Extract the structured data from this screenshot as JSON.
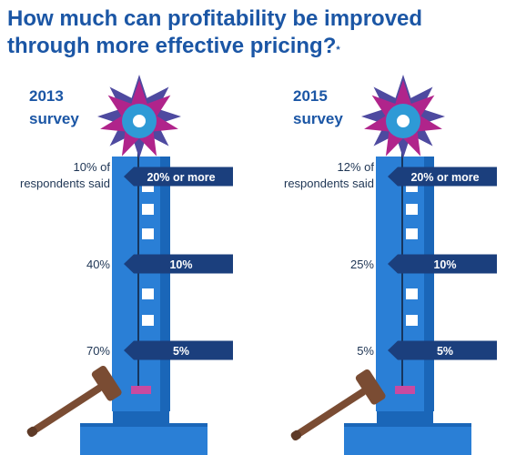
{
  "title": "How much can profitability be improved through more effective pricing?",
  "title_mark": "*",
  "chart_data": {
    "type": "table",
    "title": "How much can profitability be improved through more effective pricing?",
    "levels": [
      "20% or more",
      "10%",
      "5%"
    ],
    "panels": [
      {
        "survey_label": "2013 survey",
        "year": "2013",
        "unit": "survey",
        "values": [
          "10% of respondents said",
          "40%",
          "70%"
        ],
        "value_lines": [
          [
            "10% of",
            "respondents said"
          ],
          [
            "40%"
          ],
          [
            "70%"
          ]
        ],
        "percent_respondents": [
          10,
          40,
          70
        ]
      },
      {
        "survey_label": "2015 survey",
        "year": "2015",
        "unit": "survey",
        "values": [
          "12% of respondents said",
          "25%",
          "5%"
        ],
        "value_lines": [
          [
            "12% of",
            "respondents said"
          ],
          [
            "25%"
          ],
          [
            "5%"
          ]
        ],
        "percent_respondents": [
          12,
          25,
          5
        ]
      }
    ]
  },
  "colors": {
    "title": "#1b56a5",
    "tower": "#2a7fd6",
    "tower_edge": "#1a66b8",
    "banner": "#1b3f7d",
    "star": "#b0248b",
    "star_inner": "#4e4aa0",
    "bell": "#2e9ad6",
    "gavel": "#7a4c33",
    "puck": "#c94aa0"
  },
  "icons": [
    "star-bell-icon",
    "gavel-icon",
    "strength-tester-tower-icon"
  ]
}
